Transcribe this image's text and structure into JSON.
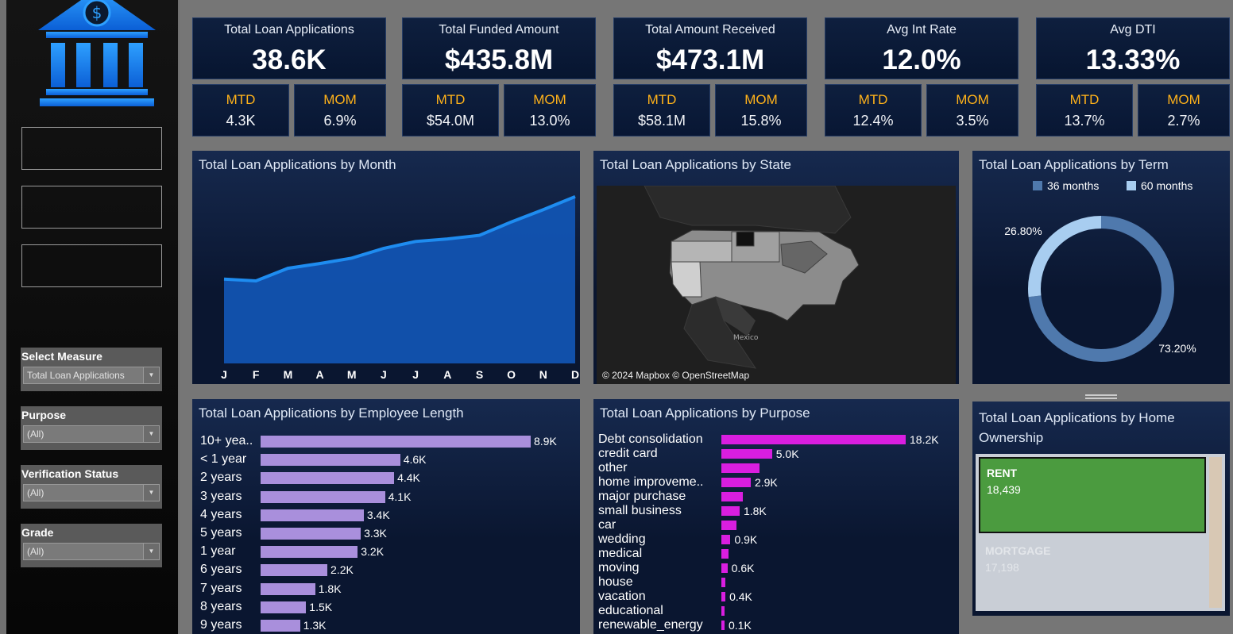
{
  "sidebar": {
    "filters": [
      {
        "label": "Select Measure",
        "value": "Total Loan Applications"
      },
      {
        "label": "Purpose",
        "value": "(All)"
      },
      {
        "label": "Verification Status",
        "value": "(All)"
      },
      {
        "label": "Grade",
        "value": "(All)"
      }
    ]
  },
  "kpis": [
    {
      "label": "Total Loan Applications",
      "value": "38.6K",
      "mtd_label": "MTD",
      "mtd": "4.3K",
      "mom_label": "MOM",
      "mom": "6.9%"
    },
    {
      "label": "Total Funded Amount",
      "value": "$435.8M",
      "mtd_label": "MTD",
      "mtd": "$54.0M",
      "mom_label": "MOM",
      "mom": "13.0%"
    },
    {
      "label": "Total Amount Received",
      "value": "$473.1M",
      "mtd_label": "MTD",
      "mtd": "$58.1M",
      "mom_label": "MOM",
      "mom": "15.8%"
    },
    {
      "label": "Avg Int Rate",
      "value": "12.0%",
      "mtd_label": "MTD",
      "mtd": "12.4%",
      "mom_label": "MOM",
      "mom": "3.5%"
    },
    {
      "label": "Avg DTI",
      "value": "13.33%",
      "mtd_label": "MTD",
      "mtd": "13.7%",
      "mom_label": "MOM",
      "mom": "2.7%"
    }
  ],
  "panels": {
    "month_title": "Total Loan Applications by Month",
    "state_title": "Total Loan Applications by State",
    "term_title": "Total Loan Applications by Term",
    "emp_title": "Total Loan Applications by Employee Length",
    "purpose_title": "Total Loan Applications by Purpose",
    "home_title_1": "Total Loan Applications by Home",
    "home_title_2": "Ownership"
  },
  "map": {
    "attribution": "© 2024 Mapbox © OpenStreetMap",
    "country_label": "Mexico"
  },
  "colors": {
    "accent": "#ffb21a",
    "line": "#1e8cf0",
    "emp_bar": "#a98fdc",
    "purpose_bar": "#d91ee0",
    "rent": "#4b9b3f",
    "mortgage": "#c9ced6",
    "term36": "#4f79ad",
    "term60": "#a8cdf0"
  },
  "chart_data": [
    {
      "type": "area",
      "title": "Total Loan Applications by Month",
      "categories": [
        "J",
        "F",
        "M",
        "A",
        "M",
        "J",
        "J",
        "A",
        "S",
        "O",
        "N",
        "D"
      ],
      "values": [
        2330,
        2280,
        2630,
        2760,
        2910,
        3180,
        3370,
        3440,
        3540,
        3910,
        4250,
        4610
      ],
      "ylim": [
        0,
        5000
      ],
      "grid": false
    },
    {
      "type": "pie",
      "title": "Total Loan Applications by Term",
      "categories": [
        "36 months",
        "60 months"
      ],
      "values": [
        73.2,
        26.8
      ],
      "labels": [
        "73.20%",
        "26.80%"
      ],
      "legend": "top"
    },
    {
      "type": "bar",
      "orientation": "horizontal",
      "title": "Total Loan Applications by Employee Length",
      "categories": [
        "10+ yea..",
        "< 1 year",
        "2 years",
        "3 years",
        "4 years",
        "5 years",
        "1 year",
        "6 years",
        "7 years",
        "8 years",
        "9 years"
      ],
      "values": [
        8.9,
        4.6,
        4.4,
        4.1,
        3.4,
        3.3,
        3.2,
        2.2,
        1.8,
        1.5,
        1.3
      ],
      "labels": [
        "8.9K",
        "4.6K",
        "4.4K",
        "4.1K",
        "3.4K",
        "3.3K",
        "3.2K",
        "2.2K",
        "1.8K",
        "1.5K",
        "1.3K"
      ]
    },
    {
      "type": "bar",
      "orientation": "horizontal",
      "title": "Total Loan Applications by Purpose",
      "categories": [
        "Debt consolidation",
        "credit card",
        "other",
        "home improveme..",
        "major purchase",
        "small business",
        "car",
        "wedding",
        "medical",
        "moving",
        "house",
        "vacation",
        "educational",
        "renewable_energy"
      ],
      "values": [
        18.2,
        5.0,
        3.8,
        2.9,
        2.1,
        1.8,
        1.5,
        0.9,
        0.7,
        0.6,
        0.4,
        0.4,
        0.3,
        0.1
      ],
      "labels": [
        "18.2K",
        "5.0K",
        "",
        "2.9K",
        "",
        "1.8K",
        "",
        "0.9K",
        "",
        "0.6K",
        "",
        "0.4K",
        "",
        "0.1K"
      ]
    },
    {
      "type": "treemap",
      "title": "Total Loan Applications by Home Ownership",
      "categories": [
        "RENT",
        "MORTGAGE"
      ],
      "values": [
        18439,
        17198
      ],
      "labels": [
        "18,439",
        "17,198"
      ]
    }
  ]
}
